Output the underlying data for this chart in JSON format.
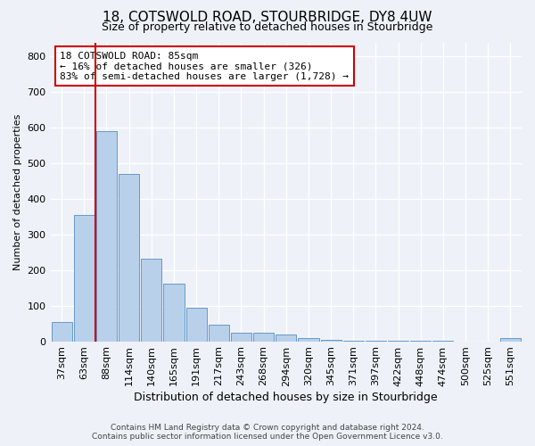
{
  "title": "18, COTSWOLD ROAD, STOURBRIDGE, DY8 4UW",
  "subtitle": "Size of property relative to detached houses in Stourbridge",
  "xlabel": "Distribution of detached houses by size in Stourbridge",
  "ylabel": "Number of detached properties",
  "categories": [
    "37sqm",
    "63sqm",
    "88sqm",
    "114sqm",
    "140sqm",
    "165sqm",
    "191sqm",
    "217sqm",
    "243sqm",
    "268sqm",
    "294sqm",
    "320sqm",
    "345sqm",
    "371sqm",
    "397sqm",
    "422sqm",
    "448sqm",
    "474sqm",
    "500sqm",
    "525sqm",
    "551sqm"
  ],
  "values": [
    55,
    355,
    590,
    470,
    232,
    162,
    95,
    47,
    25,
    25,
    18,
    10,
    4,
    2,
    2,
    1,
    1,
    1,
    0,
    0,
    8
  ],
  "bar_color": "#b8d0ea",
  "bar_edge_color": "#6699cc",
  "vline_color": "#cc0000",
  "vline_pos": 2,
  "annotation_text": "18 COTSWOLD ROAD: 85sqm\n← 16% of detached houses are smaller (326)\n83% of semi-detached houses are larger (1,728) →",
  "annotation_box_color": "#ffffff",
  "annotation_box_edge": "#cc0000",
  "ylim": [
    0,
    840
  ],
  "yticks": [
    0,
    100,
    200,
    300,
    400,
    500,
    600,
    700,
    800
  ],
  "bg_color": "#eef2f8",
  "grid_color": "#ffffff",
  "footer1": "Contains HM Land Registry data © Crown copyright and database right 2024.",
  "footer2": "Contains public sector information licensed under the Open Government Licence v3.0.",
  "title_fontsize": 11,
  "subtitle_fontsize": 9,
  "xlabel_fontsize": 9,
  "ylabel_fontsize": 8,
  "tick_fontsize": 8,
  "annot_fontsize": 8,
  "footer_fontsize": 6.5
}
